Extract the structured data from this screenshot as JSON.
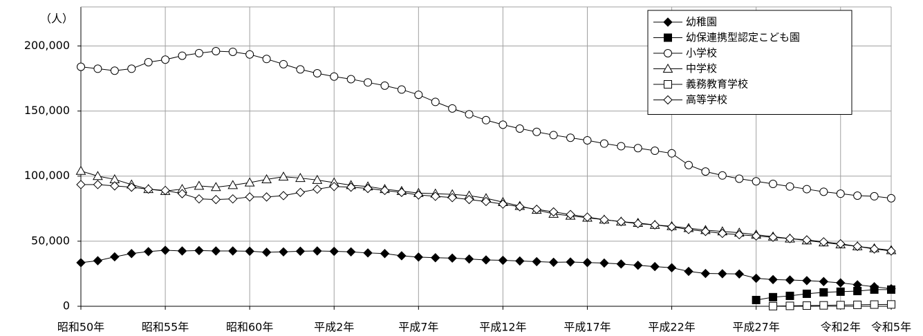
{
  "chart_data": {
    "type": "line",
    "y_label": "（人）",
    "categories": [
      "昭和50年",
      null,
      null,
      null,
      null,
      "昭和55年",
      null,
      null,
      null,
      null,
      "昭和60年",
      null,
      null,
      null,
      null,
      "平成2年",
      null,
      null,
      null,
      null,
      "平成7年",
      null,
      null,
      null,
      null,
      "平成12年",
      null,
      null,
      null,
      null,
      "平成17年",
      null,
      null,
      null,
      null,
      "平成22年",
      null,
      null,
      null,
      null,
      "平成27年",
      null,
      null,
      null,
      null,
      "令和2年",
      null,
      null,
      "令和5年"
    ],
    "ylim": [
      0,
      230000
    ],
    "yticks": [
      0,
      {
        "value": 50000,
        "label": "50,000"
      },
      {
        "value": 100000,
        "label": "100,000"
      },
      {
        "value": 150000,
        "label": "150,000"
      },
      {
        "value": 200000,
        "label": "200,000"
      }
    ],
    "grid": true,
    "legend": "upper right",
    "series": [
      {
        "name": "幼稚園",
        "color": "#000000",
        "marker": "diamond",
        "filled": true,
        "values": [
          33500,
          35000,
          38000,
          40500,
          42000,
          43000,
          42500,
          42800,
          42500,
          42500,
          42300,
          41500,
          41800,
          42300,
          42500,
          42200,
          41800,
          41000,
          40500,
          38800,
          37800,
          37300,
          37000,
          36300,
          35600,
          35300,
          34800,
          34300,
          33800,
          34000,
          33600,
          33200,
          32500,
          31500,
          30500,
          29600,
          26800,
          25200,
          25000,
          24800,
          21500,
          20500,
          20200,
          19700,
          19000,
          18000,
          16500,
          15000,
          13500
        ]
      },
      {
        "name": "幼保連携型認定こども園",
        "color": "#000000",
        "marker": "square",
        "filled": true,
        "values": [
          null,
          null,
          null,
          null,
          null,
          null,
          null,
          null,
          null,
          null,
          null,
          null,
          null,
          null,
          null,
          null,
          null,
          null,
          null,
          null,
          null,
          null,
          null,
          null,
          null,
          null,
          null,
          null,
          null,
          null,
          null,
          null,
          null,
          null,
          null,
          null,
          null,
          null,
          null,
          null,
          4800,
          7000,
          8000,
          9600,
          10700,
          11200,
          11700,
          12800,
          12800
        ]
      },
      {
        "name": "小学校",
        "color": "#000000",
        "marker": "circle",
        "filled": false,
        "values": [
          184000,
          182500,
          181000,
          182500,
          187500,
          189500,
          192500,
          194500,
          196000,
          195500,
          193500,
          190000,
          186000,
          182000,
          179000,
          176500,
          174500,
          172000,
          169500,
          166500,
          162500,
          157000,
          152000,
          147500,
          143000,
          139500,
          136500,
          134000,
          131500,
          129500,
          127500,
          125000,
          123000,
          121500,
          119500,
          117500,
          108500,
          103500,
          100500,
          98000,
          96000,
          94000,
          92000,
          90000,
          88000,
          86500,
          85000,
          84500,
          83000
        ]
      },
      {
        "name": "中学校",
        "color": "#000000",
        "marker": "triangle",
        "filled": false,
        "values": [
          104000,
          100000,
          97500,
          93500,
          90000,
          88500,
          90000,
          92500,
          91500,
          93000,
          95000,
          97500,
          99500,
          98500,
          97000,
          95000,
          93000,
          92000,
          90000,
          88500,
          87000,
          86500,
          86000,
          85000,
          83000,
          80000,
          77000,
          74000,
          71000,
          69500,
          68000,
          66500,
          65000,
          64000,
          62500,
          61500,
          60000,
          58500,
          57500,
          56500,
          55000,
          53500,
          52000,
          50500,
          49000,
          47500,
          46000,
          44500,
          43000
        ]
      },
      {
        "name": "義務教育学校",
        "color": "#000000",
        "marker": "square",
        "filled": false,
        "values": [
          null,
          null,
          null,
          null,
          null,
          null,
          null,
          null,
          null,
          null,
          null,
          null,
          null,
          null,
          null,
          null,
          null,
          null,
          null,
          null,
          null,
          null,
          null,
          null,
          null,
          null,
          null,
          null,
          null,
          null,
          null,
          null,
          null,
          null,
          null,
          null,
          null,
          null,
          null,
          null,
          null,
          100,
          300,
          500,
          700,
          900,
          1100,
          1300,
          1400
        ]
      },
      {
        "name": "高等学校",
        "color": "#000000",
        "marker": "diamond",
        "filled": false,
        "values": [
          93500,
          93500,
          92500,
          91500,
          90000,
          89000,
          86500,
          82500,
          82000,
          82500,
          84000,
          84000,
          85000,
          87500,
          90000,
          92000,
          91500,
          90500,
          89000,
          87500,
          85500,
          84500,
          83500,
          82000,
          80500,
          78500,
          76500,
          74500,
          72500,
          70500,
          68500,
          66500,
          65000,
          63500,
          62500,
          61000,
          59000,
          57500,
          56000,
          55000,
          54000,
          53000,
          52000,
          51000,
          49500,
          48000,
          46000,
          44000,
          42500
        ]
      }
    ]
  }
}
